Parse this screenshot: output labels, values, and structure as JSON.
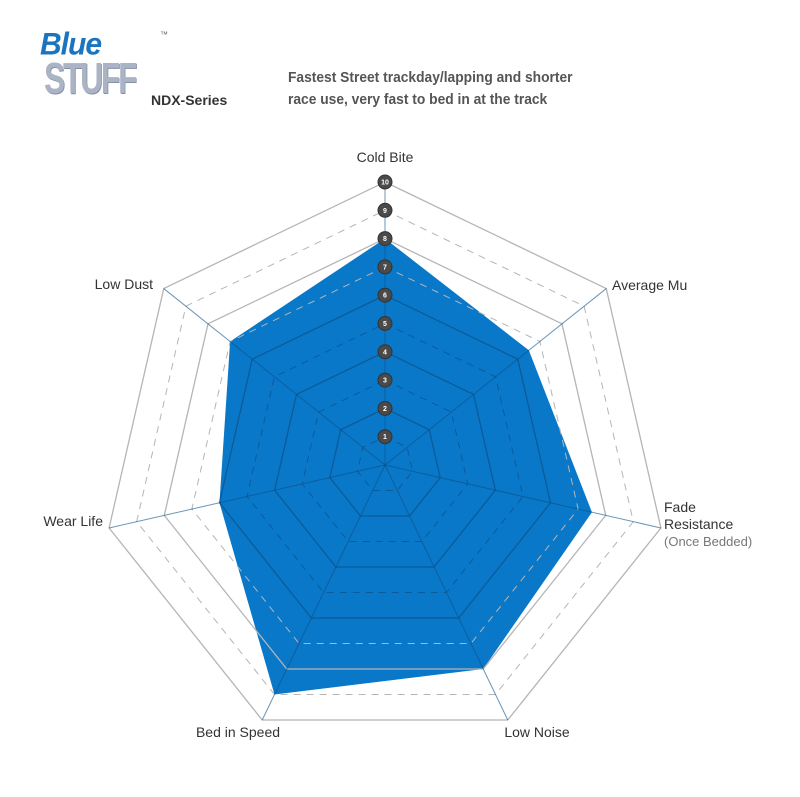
{
  "header": {
    "logo_text": "Blue Stuff",
    "logo_tm": "™",
    "series": "NDX-Series",
    "description_line1": "Fastest Street trackday/lapping and shorter",
    "description_line2": "race use, very fast to bed in at the track"
  },
  "chart_data": {
    "type": "radar",
    "title": "",
    "range": [
      0,
      10
    ],
    "ticks": [
      1,
      2,
      3,
      4,
      5,
      6,
      7,
      8,
      9,
      10
    ],
    "grid": true,
    "fill_color": "#0a78c8",
    "axes": [
      {
        "label": "Cold Bite",
        "sublabel": "",
        "value": 8
      },
      {
        "label": "Average Mu",
        "sublabel": "",
        "value": 6.5
      },
      {
        "label": "Fade Resistance",
        "label_lines": [
          "Fade",
          "Resistance"
        ],
        "sublabel": "(Once Bedded)",
        "value": 7.5
      },
      {
        "label": "Low Noise",
        "sublabel": "",
        "value": 8
      },
      {
        "label": "Bed in Speed",
        "sublabel": "",
        "value": 9
      },
      {
        "label": "Wear Life",
        "sublabel": "",
        "value": 6
      },
      {
        "label": "Low Dust",
        "sublabel": "",
        "value": 7
      }
    ]
  }
}
